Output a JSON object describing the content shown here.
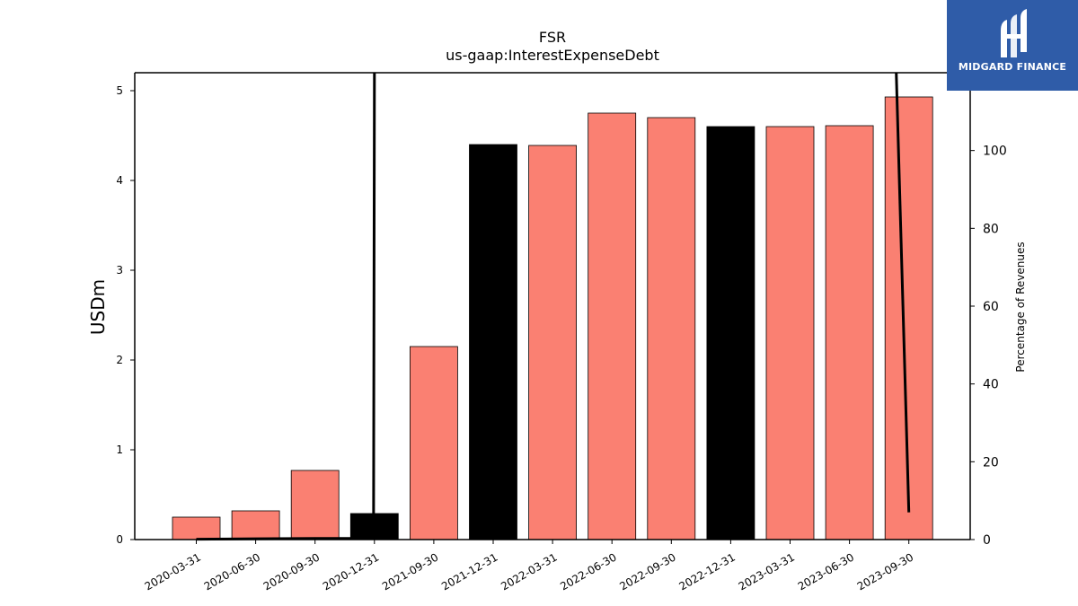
{
  "brand": {
    "name": "MIDGARD FINANCE",
    "color": "#2f5ca8"
  },
  "chart_data": {
    "type": "bar",
    "title": "FSR",
    "subtitle": "us-gaap:InterestExpenseDebt",
    "ylabel": "USDm",
    "y2label": "Percentage of Revenues",
    "ylim": [
      0,
      5.2
    ],
    "y2lim": [
      0,
      120
    ],
    "yticks": [
      0,
      1,
      2,
      3,
      4,
      5
    ],
    "y2ticks": [
      0,
      20,
      40,
      60,
      80,
      100
    ],
    "categories": [
      "2020-03-31",
      "2020-06-30",
      "2020-09-30",
      "2020-12-31",
      "2021-09-30",
      "2021-12-31",
      "2022-03-31",
      "2022-06-30",
      "2022-09-30",
      "2022-12-31",
      "2023-03-31",
      "2023-06-30",
      "2023-09-30"
    ],
    "values": [
      0.25,
      0.32,
      0.77,
      0.29,
      2.15,
      4.4,
      4.39,
      4.75,
      4.7,
      4.6,
      4.6,
      4.61,
      4.93
    ],
    "bar_colors": [
      "#fa8072",
      "#fa8072",
      "#fa8072",
      "#000000",
      "#fa8072",
      "#000000",
      "#fa8072",
      "#fa8072",
      "#fa8072",
      "#000000",
      "#fa8072",
      "#fa8072",
      "#fa8072"
    ],
    "pct_of_revenue": [
      0.1,
      0.2,
      0.3,
      null,
      null,
      null,
      null,
      null,
      null,
      null,
      null,
      null,
      7
    ]
  }
}
